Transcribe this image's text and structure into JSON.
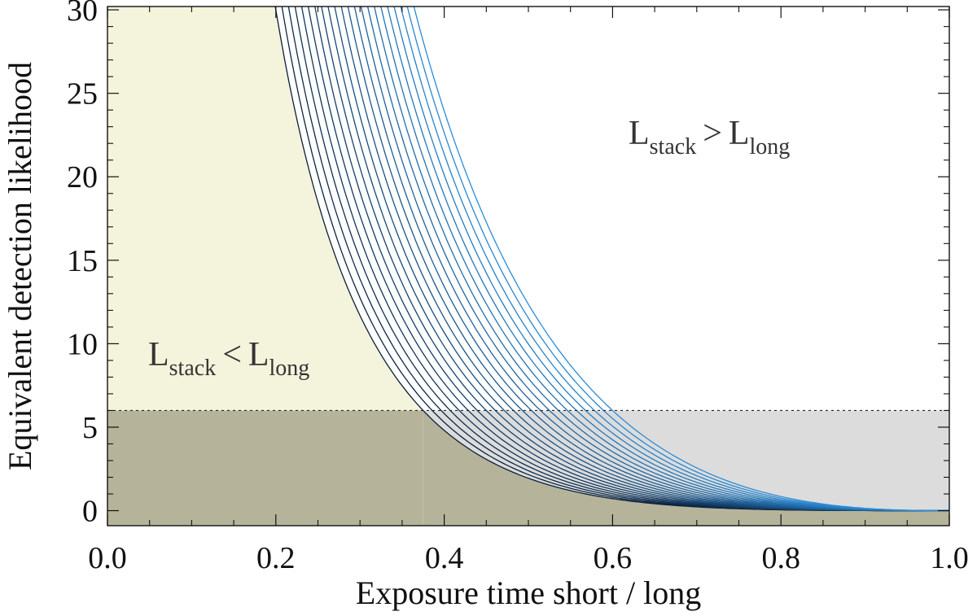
{
  "chart_data": {
    "type": "line",
    "xlabel": "Exposure time short / long",
    "ylabel": "Equivalent detection likelihood",
    "xlim": [
      0.0,
      1.0
    ],
    "ylim": [
      -0.9,
      30.2
    ],
    "x_ticks": [
      0.0,
      0.2,
      0.4,
      0.6,
      0.8,
      1.0
    ],
    "x_tick_labels": [
      "0.0",
      "0.2",
      "0.4",
      "0.6",
      "0.8",
      "1.0"
    ],
    "y_ticks": [
      0,
      5,
      10,
      15,
      20,
      25,
      30
    ],
    "y_tick_labels": [
      "0",
      "5",
      "10",
      "15",
      "20",
      "25",
      "30"
    ],
    "threshold": 6,
    "region_colors": {
      "left_region": "#f4f3dc",
      "below_threshold_left": "#b5b49a",
      "below_threshold_right": "#dcdcdc"
    },
    "annotations": [
      {
        "base": "L",
        "sub": "stack",
        "op": "<",
        "base2": "L",
        "sub2": "long",
        "region": "left"
      },
      {
        "base": "L",
        "sub": "stack",
        "op": ">",
        "base2": "L",
        "sub2": "long",
        "region": "right"
      }
    ],
    "curve_family": {
      "count": 22,
      "color_start": "#0b1f3a",
      "color_end": "#2a8cd8",
      "x_at_threshold_6_range": [
        0.375,
        0.6
      ],
      "x_at_top_30_range": [
        0.2,
        0.365
      ],
      "all_pass_through": [
        1.0,
        0
      ]
    }
  }
}
